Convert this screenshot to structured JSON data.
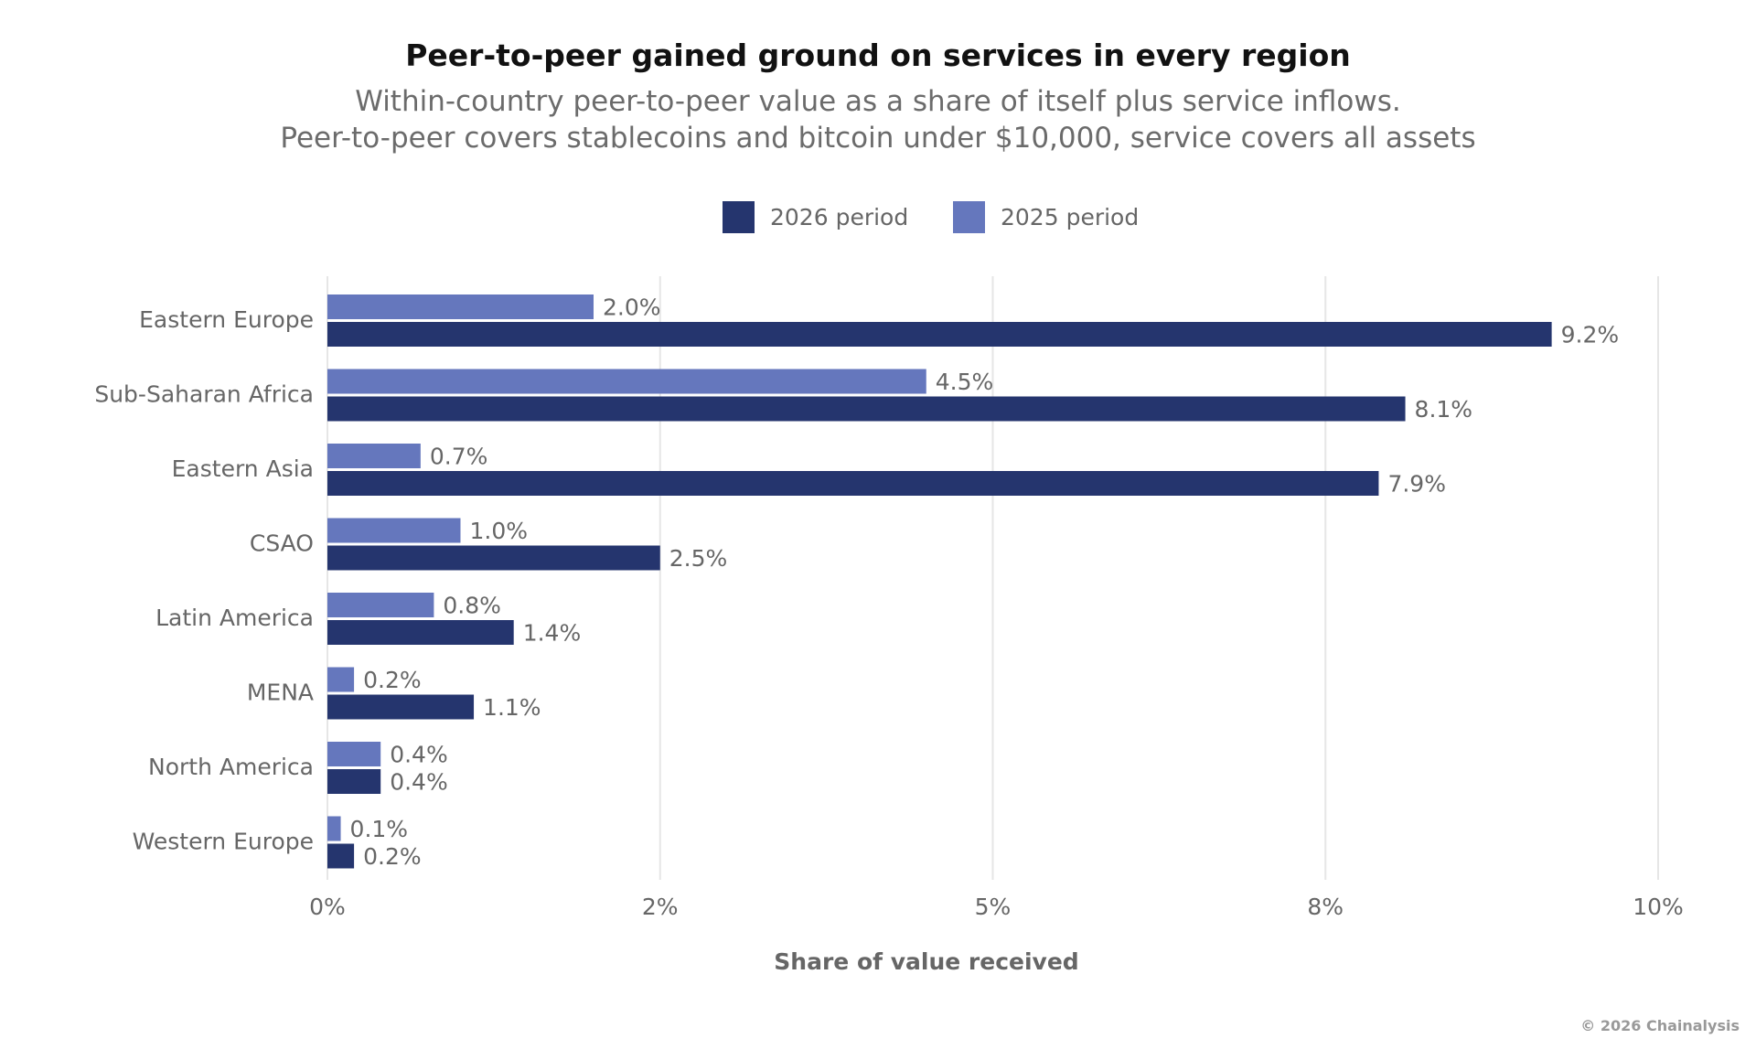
{
  "chart_data": {
    "type": "bar",
    "orientation": "horizontal",
    "title": "Peer-to-peer gained ground on services in every region",
    "subtitle": [
      "Within-country peer-to-peer value as a share of itself plus service inflows.",
      "Peer-to-peer covers stablecoins and bitcoin under $10,000, service covers all assets"
    ],
    "xlabel": "Share of value received",
    "xlim": [
      0,
      10
    ],
    "x_ticks": [
      0,
      2.5,
      5,
      7.5,
      10
    ],
    "x_tick_labels": [
      "0%",
      "2%",
      "5%",
      "8%",
      "10%"
    ],
    "grid": true,
    "legend_position": "top-center",
    "categories": [
      "Eastern Europe",
      "Sub-Saharan Africa",
      "Eastern Asia",
      "CSAO",
      "Latin America",
      "MENA",
      "North America",
      "Western Europe"
    ],
    "series": [
      {
        "name": "2025 period",
        "color": "#6577bd",
        "values": [
          2.0,
          4.5,
          0.7,
          1.0,
          0.8,
          0.2,
          0.4,
          0.1
        ],
        "labels": [
          "2.0%",
          "4.5%",
          "0.7%",
          "1.0%",
          "0.8%",
          "0.2%",
          "0.4%",
          "0.1%"
        ]
      },
      {
        "name": "2026 period",
        "color": "#25356e",
        "values": [
          9.2,
          8.1,
          7.9,
          2.5,
          1.4,
          1.1,
          0.4,
          0.2
        ],
        "labels": [
          "9.2%",
          "8.1%",
          "7.9%",
          "2.5%",
          "1.4%",
          "1.1%",
          "0.4%",
          "0.2%"
        ]
      }
    ],
    "legend_order": [
      "2026 period",
      "2025 period"
    ]
  },
  "credit": "© 2026 Chainalysis"
}
